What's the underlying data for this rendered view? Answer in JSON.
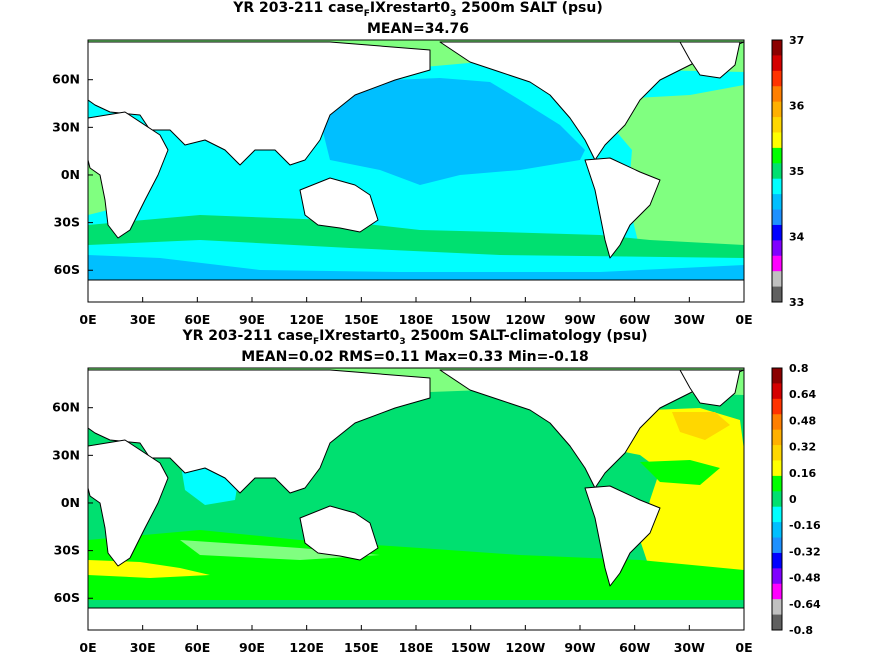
{
  "chart_data": [
    {
      "type": "heatmap",
      "map_type": "global ocean map",
      "title": "YR 203-211 case",
      "title_sub": "F",
      "title_mid": "IXrestart0",
      "title_sub2": "3",
      "title_end": " 2500m SALT (psu)",
      "subtitle": "MEAN=34.76",
      "x_ticks": [
        "0E",
        "30E",
        "60E",
        "90E",
        "120E",
        "150E",
        "180E",
        "150W",
        "120W",
        "90W",
        "60W",
        "30W",
        "0E"
      ],
      "y_ticks": [
        "60N",
        "30N",
        "0N",
        "30S",
        "60S"
      ],
      "y_tick_lat": [
        60,
        30,
        0,
        -30,
        -60
      ],
      "lat_range": [
        -80,
        85
      ],
      "colorbar": {
        "labels": [
          "37",
          "36",
          "35",
          "34",
          "33"
        ],
        "label_values": [
          37,
          36,
          35,
          34,
          33
        ],
        "range": [
          33,
          37
        ],
        "colors": [
          "#8b0000",
          "#d40000",
          "#ff3300",
          "#ff7f00",
          "#ffb000",
          "#ffd700",
          "#ffff00",
          "#00ff00",
          "#00e070",
          "#00ffff",
          "#00bfff",
          "#1e90ff",
          "#0000ff",
          "#8000ff",
          "#ff00ff",
          "#c0c0c0",
          "#606060"
        ]
      }
    },
    {
      "type": "heatmap",
      "map_type": "global ocean map",
      "title": "YR 203-211 case",
      "title_sub": "F",
      "title_mid": "IXrestart0",
      "title_sub2": "3",
      "title_end": " 2500m SALT-climatology (psu)",
      "subtitle": "MEAN=0.02   RMS=0.11   Max=0.33   Min=-0.18",
      "x_ticks": [
        "0E",
        "30E",
        "60E",
        "90E",
        "120E",
        "150E",
        "180E",
        "150W",
        "120W",
        "90W",
        "60W",
        "30W",
        "0E"
      ],
      "y_ticks": [
        "60N",
        "30N",
        "0N",
        "30S",
        "60S"
      ],
      "y_tick_lat": [
        60,
        30,
        0,
        -30,
        -60
      ],
      "lat_range": [
        -80,
        85
      ],
      "colorbar": {
        "labels": [
          "0.8",
          "0.64",
          "0.48",
          "0.32",
          "0.16",
          "0",
          "-0.16",
          "-0.32",
          "-0.48",
          "-0.64",
          "-0.8"
        ],
        "label_values": [
          0.8,
          0.64,
          0.48,
          0.32,
          0.16,
          0,
          -0.16,
          -0.32,
          -0.48,
          -0.64,
          -0.8
        ],
        "range": [
          -0.8,
          0.8
        ],
        "colors": [
          "#8b0000",
          "#d40000",
          "#ff3300",
          "#ff7f00",
          "#ffb000",
          "#ffd700",
          "#ffff00",
          "#00ff00",
          "#00e070",
          "#00ffff",
          "#00bfff",
          "#1e90ff",
          "#0000ff",
          "#8000ff",
          "#ff00ff",
          "#c0c0c0",
          "#606060"
        ]
      }
    }
  ]
}
